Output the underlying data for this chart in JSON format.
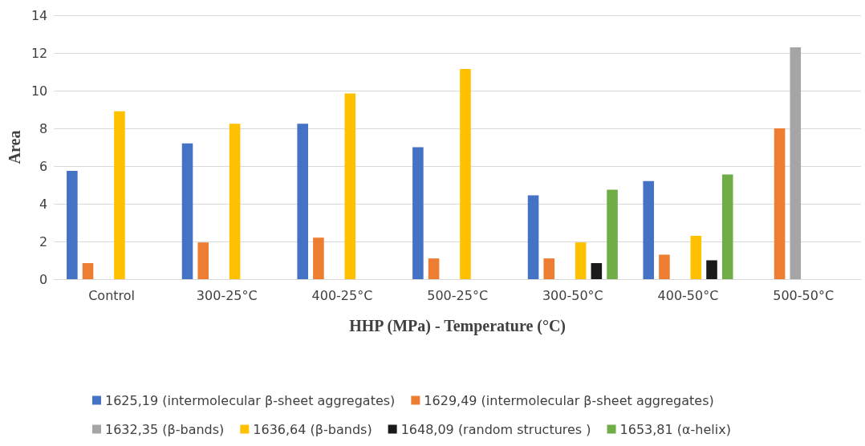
{
  "chart_data": {
    "type": "bar",
    "xlabel": "HHP (MPa) - Temperature (°C)",
    "ylabel": "Area",
    "categories": [
      "Control",
      "300-25°C",
      "400-25°C",
      "500-25°C",
      "300-50°C",
      "400-50°C",
      "500-50°C"
    ],
    "series": [
      {
        "name": "1625,19 (intermolecular β-sheet aggregates)",
        "color": "#4472c4",
        "values": [
          5.75,
          7.2,
          8.25,
          7.0,
          4.45,
          5.2,
          null
        ]
      },
      {
        "name": "1629,49 (intermolecular β-sheet aggregates)",
        "color": "#ed7d31",
        "values": [
          0.85,
          1.95,
          2.2,
          1.1,
          1.1,
          1.3,
          8.0
        ]
      },
      {
        "name": "1632,35 (β-bands)",
        "color": "#a5a5a5",
        "values": [
          null,
          null,
          null,
          null,
          null,
          null,
          12.3
        ]
      },
      {
        "name": "1636,64 (β-bands)",
        "color": "#ffc000",
        "values": [
          8.9,
          8.25,
          9.85,
          11.15,
          1.95,
          2.3,
          null
        ]
      },
      {
        "name": "1648,09 (random structures )",
        "color": "#1a1a1a",
        "values": [
          null,
          null,
          null,
          null,
          0.85,
          1.0,
          null
        ]
      },
      {
        "name": "1653,81 (α-helix)",
        "color": "#70ad47",
        "values": [
          null,
          null,
          null,
          null,
          4.75,
          5.55,
          null
        ]
      }
    ],
    "ylim": [
      0,
      14
    ],
    "yticks": [
      0,
      2,
      4,
      6,
      8,
      10,
      12,
      14
    ],
    "grid": "y",
    "legend": "bottom"
  }
}
